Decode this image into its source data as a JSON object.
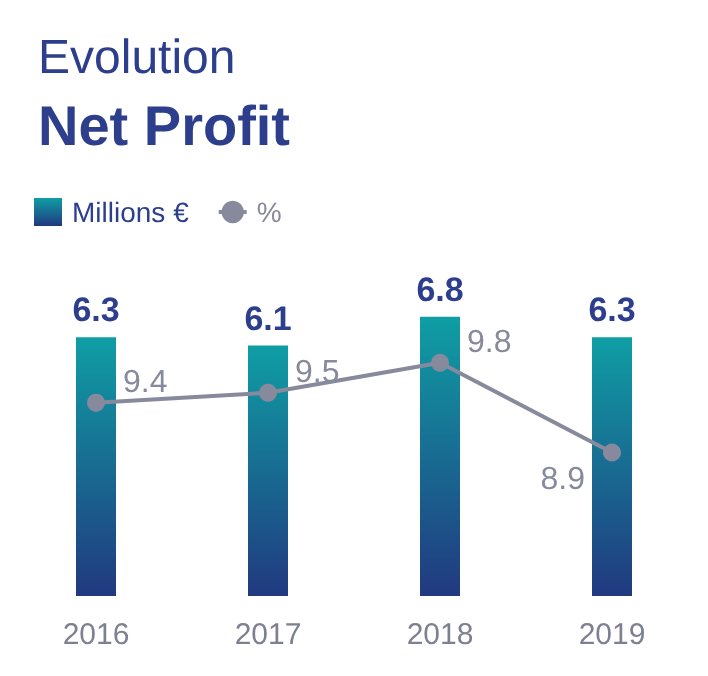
{
  "chart_data": {
    "type": "bar",
    "title": "Evolution",
    "subtitle": "Net Profit",
    "categories": [
      "2016",
      "2017",
      "2018",
      "2019"
    ],
    "series": [
      {
        "name": "Millions €",
        "color": "#0f9ea4",
        "values": [
          6.3,
          6.1,
          6.8,
          6.3
        ]
      },
      {
        "name": "%",
        "type": "line",
        "axis": "y2",
        "color": "#868a9c",
        "values": [
          9.4,
          9.5,
          9.8,
          8.9
        ]
      }
    ],
    "data_labels": true,
    "legend": "top left",
    "marker": "circle",
    "line_style": "solid"
  }
}
